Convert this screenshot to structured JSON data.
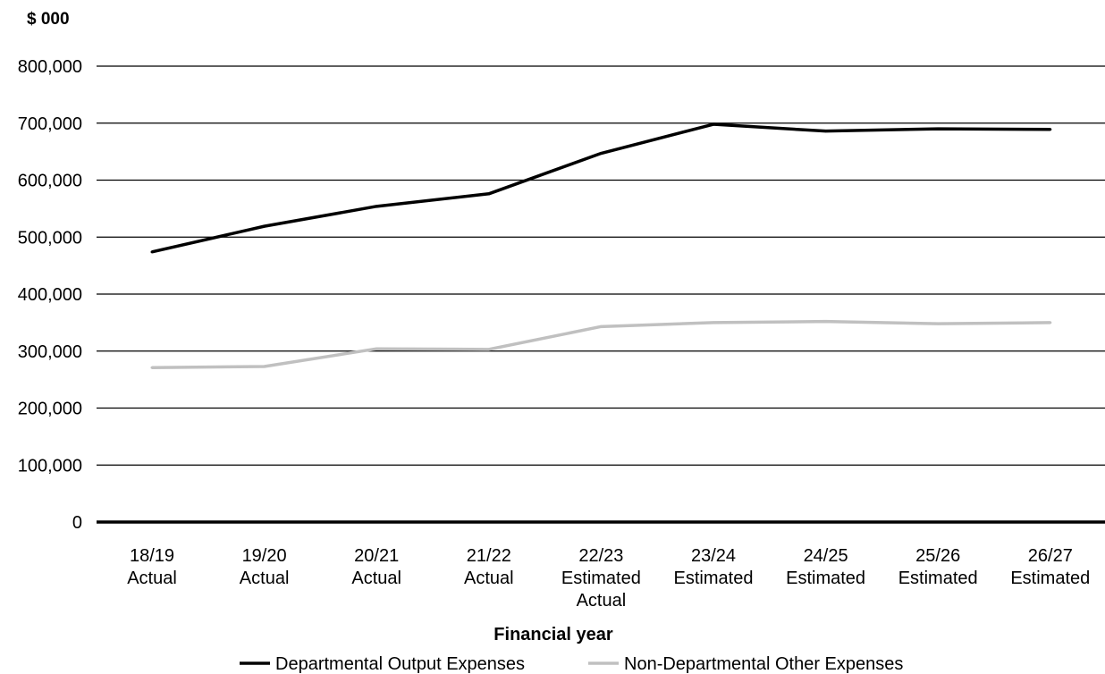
{
  "chart_data": {
    "type": "line",
    "unit_label": "$ 000",
    "xlabel": "Financial year",
    "ylabel": "",
    "ylim": [
      0,
      800000
    ],
    "yticks": [
      "0",
      "100,000",
      "200,000",
      "300,000",
      "400,000",
      "500,000",
      "600,000",
      "700,000",
      "800,000"
    ],
    "ytick_values": [
      0,
      100000,
      200000,
      300000,
      400000,
      500000,
      600000,
      700000,
      800000
    ],
    "categories": [
      [
        "18/19",
        "Actual"
      ],
      [
        "19/20",
        "Actual"
      ],
      [
        "20/21",
        "Actual"
      ],
      [
        "21/22",
        "Actual"
      ],
      [
        "22/23",
        "Estimated",
        "Actual"
      ],
      [
        "23/24",
        "Estimated"
      ],
      [
        "24/25",
        "Estimated"
      ],
      [
        "25/26",
        "Estimated"
      ],
      [
        "26/27",
        "Estimated"
      ]
    ],
    "grid": true,
    "legend_position": "bottom-center",
    "series": [
      {
        "name": "Departmental Output Expenses",
        "color": "#000000",
        "values": [
          474000,
          519000,
          554000,
          576000,
          647000,
          698000,
          686000,
          690000,
          689000
        ]
      },
      {
        "name": "Non-Departmental Other Expenses",
        "color": "#c0c0c0",
        "values": [
          271000,
          273000,
          304000,
          303000,
          343000,
          350000,
          352000,
          348000,
          350000
        ]
      }
    ]
  }
}
